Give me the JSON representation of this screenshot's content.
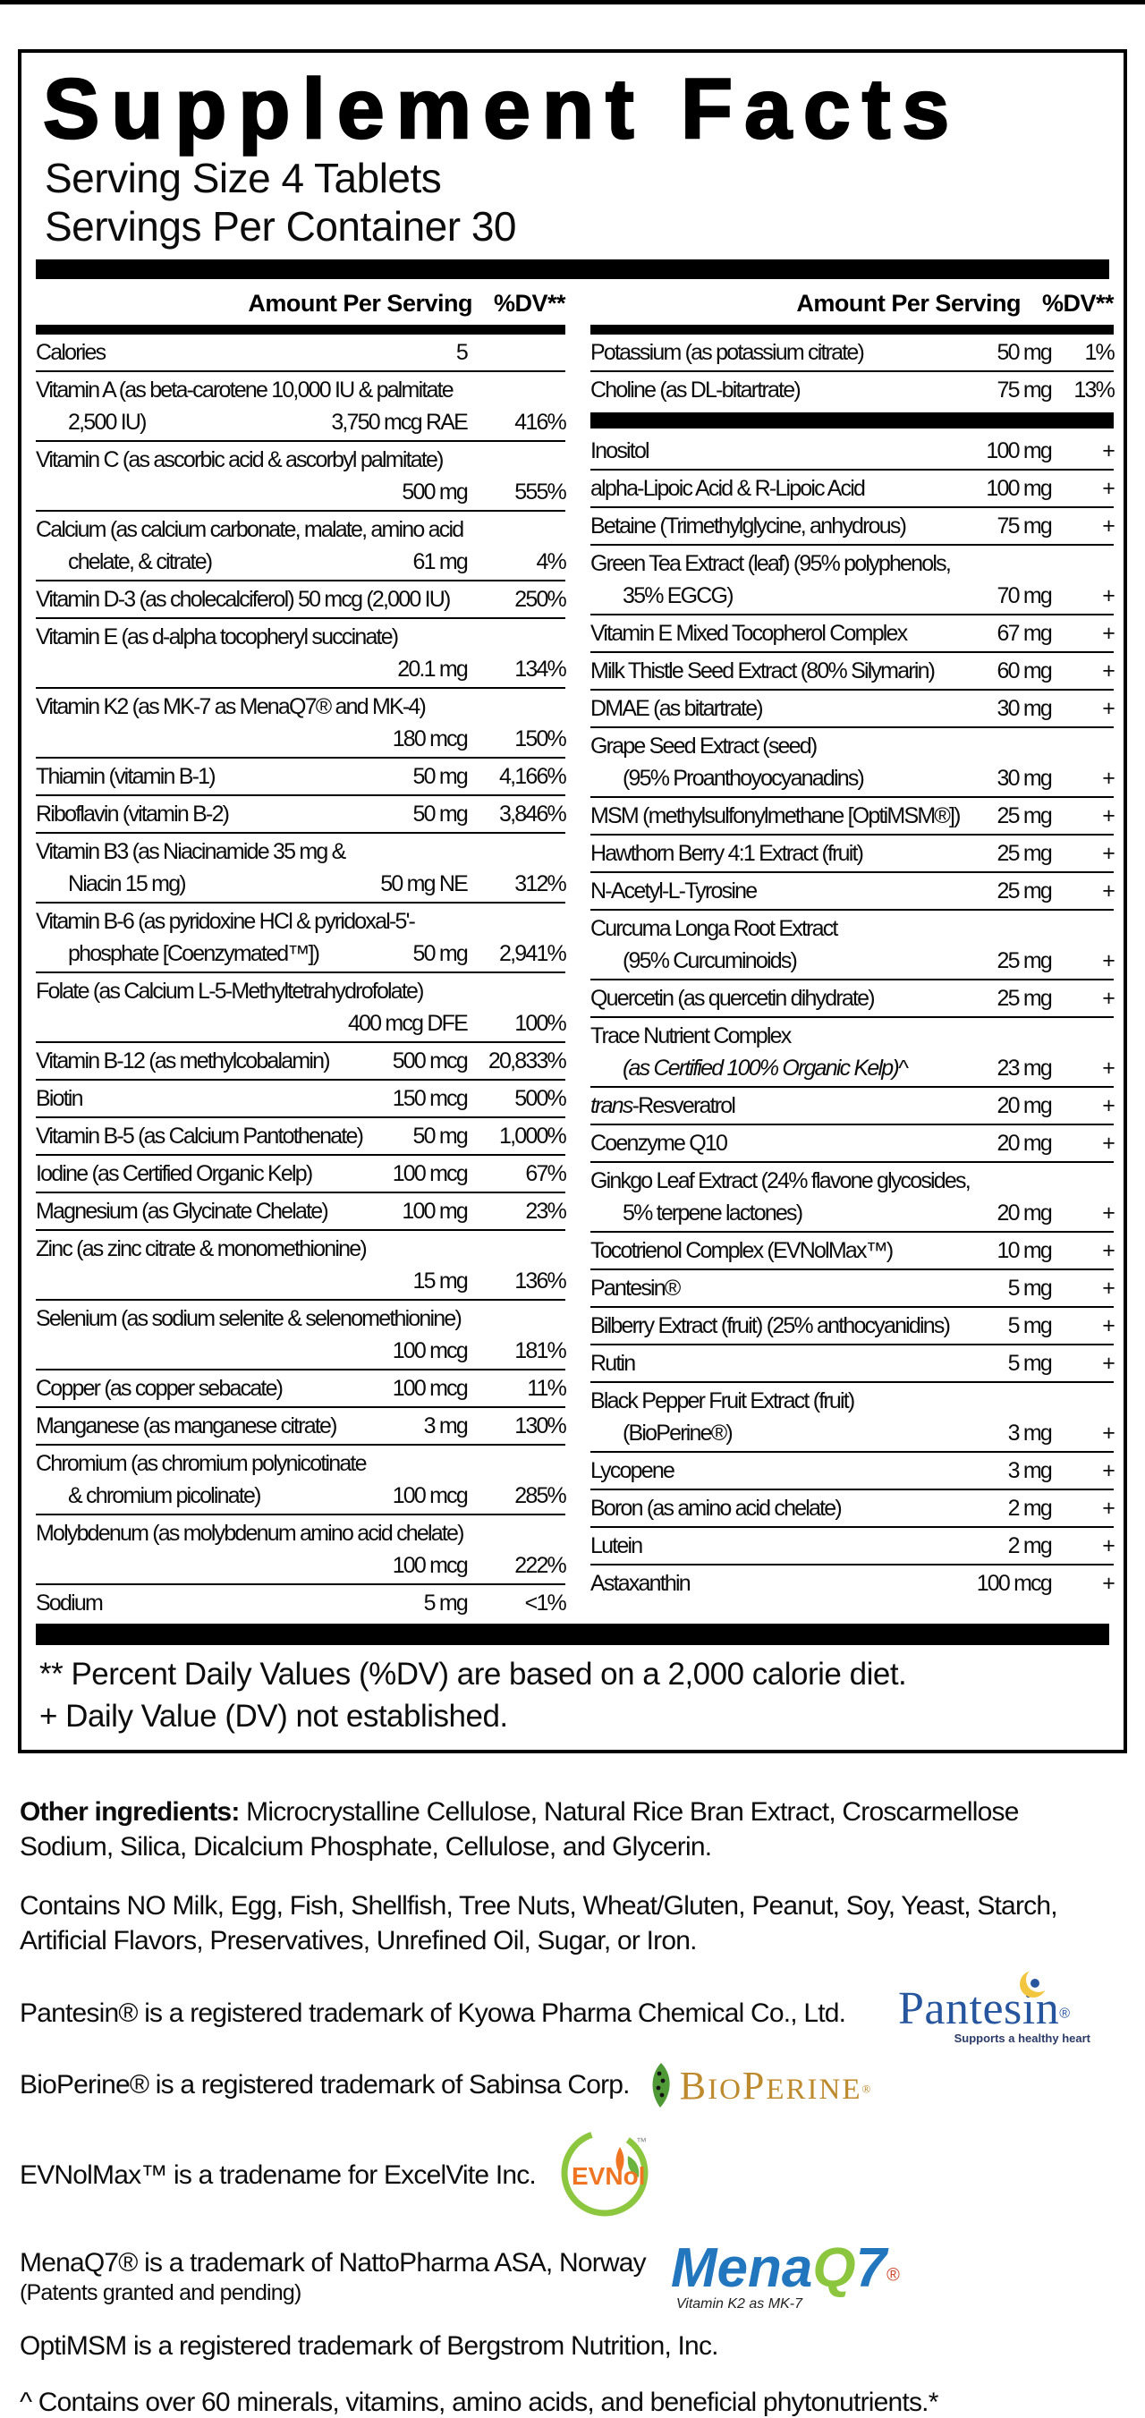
{
  "header": {
    "title": "Supplement Facts",
    "serving_size": "Serving Size 4 Tablets",
    "servings_per_container": "Servings Per Container 30"
  },
  "columns": {
    "header_amount": "Amount Per Serving",
    "header_dv": "%DV**",
    "left_rows": [
      {
        "l": [
          {
            "t": "Calories"
          }
        ],
        "a": "5",
        "d": ""
      },
      {
        "l": [
          {
            "t": "Vitamin A (as beta-carotene 10,000 IU & palmitate"
          },
          {
            "t": "2,500 IU)",
            "ind": true
          }
        ],
        "a": "3,750 mcg RAE",
        "d": "416%"
      },
      {
        "l": [
          {
            "t": "Vitamin C (as ascorbic acid & ascorbyl palmitate)"
          },
          {
            "t": ""
          }
        ],
        "a": "500 mg",
        "d": "555%"
      },
      {
        "l": [
          {
            "t": "Calcium (as calcium carbonate, malate, amino acid"
          },
          {
            "t": "chelate, & citrate)",
            "ind": true
          }
        ],
        "a": "61 mg",
        "d": "4%"
      },
      {
        "l": [
          {
            "t": "Vitamin D-3 (as cholecalciferol) 50 mcg (2,000 IU)"
          }
        ],
        "a": "",
        "d": "250%"
      },
      {
        "l": [
          {
            "t": "Vitamin E (as d-alpha tocopheryl succinate)"
          },
          {
            "t": ""
          }
        ],
        "a": "20.1 mg",
        "d": "134%"
      },
      {
        "l": [
          {
            "t": "Vitamin K2 (as MK-7 as MenaQ7® and MK-4)"
          },
          {
            "t": ""
          }
        ],
        "a": "180 mcg",
        "d": "150%"
      },
      {
        "l": [
          {
            "t": "Thiamin (vitamin B-1)"
          }
        ],
        "a": "50 mg",
        "d": "4,166%"
      },
      {
        "l": [
          {
            "t": "Riboflavin (vitamin B-2)"
          }
        ],
        "a": "50 mg",
        "d": "3,846%"
      },
      {
        "l": [
          {
            "t": "Vitamin B3 (as Niacinamide 35 mg &"
          },
          {
            "t": "Niacin 15 mg)",
            "ind": true
          }
        ],
        "a": "50 mg NE",
        "d": "312%"
      },
      {
        "l": [
          {
            "t": "Vitamin B-6 (as pyridoxine HCl & pyridoxal-5'-"
          },
          {
            "t": "phosphate [Coenzymated™])",
            "ind": true
          }
        ],
        "a": "50 mg",
        "d": "2,941%"
      },
      {
        "l": [
          {
            "t": "Folate (as Calcium L-5-Methyltetrahydrofolate)"
          },
          {
            "t": ""
          }
        ],
        "a": "400 mcg DFE",
        "d": "100%"
      },
      {
        "l": [
          {
            "t": "Vitamin B-12 (as methylcobalamin)"
          }
        ],
        "a": "500 mcg",
        "d": "20,833%"
      },
      {
        "l": [
          {
            "t": "Biotin"
          }
        ],
        "a": "150 mcg",
        "d": "500%"
      },
      {
        "l": [
          {
            "t": "Vitamin B-5 (as Calcium Pantothenate)"
          }
        ],
        "a": "50 mg",
        "d": "1,000%"
      },
      {
        "l": [
          {
            "t": "Iodine (as Certified Organic Kelp)"
          }
        ],
        "a": "100 mcg",
        "d": "67%"
      },
      {
        "l": [
          {
            "t": "Magnesium (as Glycinate Chelate)"
          }
        ],
        "a": "100 mg",
        "d": "23%"
      },
      {
        "l": [
          {
            "t": "Zinc (as zinc citrate & monomethionine)"
          },
          {
            "t": ""
          }
        ],
        "a": "15 mg",
        "d": "136%"
      },
      {
        "l": [
          {
            "t": "Selenium (as sodium selenite & selenomethionine)"
          },
          {
            "t": ""
          }
        ],
        "a": "100 mcg",
        "d": "181%"
      },
      {
        "l": [
          {
            "t": "Copper (as copper sebacate)"
          }
        ],
        "a": "100 mcg",
        "d": "11%"
      },
      {
        "l": [
          {
            "t": "Manganese (as manganese citrate)"
          }
        ],
        "a": "3 mg",
        "d": "130%"
      },
      {
        "l": [
          {
            "t": "Chromium (as chromium polynicotinate"
          },
          {
            "t": "& chromium picolinate)",
            "ind": true
          }
        ],
        "a": "100 mcg",
        "d": "285%"
      },
      {
        "l": [
          {
            "t": "Molybdenum (as molybdenum amino acid chelate)"
          },
          {
            "t": ""
          }
        ],
        "a": "100 mcg",
        "d": "222%"
      },
      {
        "l": [
          {
            "t": "Sodium"
          }
        ],
        "a": "5 mg",
        "d": "<1%"
      }
    ],
    "right_rows_top": [
      {
        "l": [
          {
            "t": "Potassium (as potassium citrate)"
          }
        ],
        "a": "50 mg",
        "d": "1%"
      },
      {
        "l": [
          {
            "t": "Choline (as DL-bitartrate)"
          }
        ],
        "a": "75 mg",
        "d": "13%"
      }
    ],
    "right_rows_bottom": [
      {
        "l": [
          {
            "t": "Inositol"
          }
        ],
        "a": "100 mg",
        "d": "+"
      },
      {
        "l": [
          {
            "t": "alpha-Lipoic Acid & R-Lipoic Acid"
          }
        ],
        "a": "100 mg",
        "d": "+"
      },
      {
        "l": [
          {
            "t": "Betaine (Trimethylglycine, anhydrous)"
          }
        ],
        "a": "75 mg",
        "d": "+"
      },
      {
        "l": [
          {
            "t": "Green Tea Extract (leaf) (95% polyphenols,"
          },
          {
            "t": "35% EGCG)",
            "ind": true
          }
        ],
        "a": "70 mg",
        "d": "+"
      },
      {
        "l": [
          {
            "t": "Vitamin E Mixed Tocopherol Complex"
          }
        ],
        "a": "67 mg",
        "d": "+"
      },
      {
        "l": [
          {
            "t": "Milk Thistle Seed Extract (80% Silymarin)"
          }
        ],
        "a": "60 mg",
        "d": "+"
      },
      {
        "l": [
          {
            "t": "DMAE (as bitartrate)"
          }
        ],
        "a": "30 mg",
        "d": "+"
      },
      {
        "l": [
          {
            "t": "Grape Seed Extract (seed)"
          },
          {
            "t": "(95% Proanthoyocyanadins)",
            "ind": true
          }
        ],
        "a": "30 mg",
        "d": "+"
      },
      {
        "l": [
          {
            "t": "MSM (methylsulfonylmethane [OptiMSM®])"
          }
        ],
        "a": "25 mg",
        "d": "+"
      },
      {
        "l": [
          {
            "t": "Hawthorn Berry 4:1 Extract (fruit)"
          }
        ],
        "a": "25 mg",
        "d": "+"
      },
      {
        "l": [
          {
            "t": "N-Acetyl-L-Tyrosine"
          }
        ],
        "a": "25 mg",
        "d": "+"
      },
      {
        "l": [
          {
            "t": "Curcuma Longa Root Extract"
          },
          {
            "t": "(95% Curcuminoids)",
            "ind": true
          }
        ],
        "a": "25 mg",
        "d": "+"
      },
      {
        "l": [
          {
            "t": "Quercetin (as quercetin dihydrate)"
          }
        ],
        "a": "25 mg",
        "d": "+"
      },
      {
        "l": [
          {
            "t": "Trace Nutrient Complex"
          },
          {
            "t": "(as Certified 100% Organic Kelp)^",
            "ind": true,
            "it": true
          }
        ],
        "a": "23 mg",
        "d": "+"
      },
      {
        "l": [
          {
            "pre": "trans",
            "t": "-Resveratrol"
          }
        ],
        "a": "20 mg",
        "d": "+"
      },
      {
        "l": [
          {
            "t": "Coenzyme Q10"
          }
        ],
        "a": "20 mg",
        "d": "+"
      },
      {
        "l": [
          {
            "t": "Ginkgo Leaf Extract (24% flavone glycosides,"
          },
          {
            "t": "5% terpene lactones)",
            "ind": true
          }
        ],
        "a": "20 mg",
        "d": "+"
      },
      {
        "l": [
          {
            "t": "Tocotrienol Complex (EVNolMax™)"
          }
        ],
        "a": "10 mg",
        "d": "+"
      },
      {
        "l": [
          {
            "t": "Pantesin®"
          }
        ],
        "a": "5 mg",
        "d": "+"
      },
      {
        "l": [
          {
            "t": "Bilberry Extract (fruit) (25% anthocyanidins)"
          }
        ],
        "a": "5 mg",
        "d": "+"
      },
      {
        "l": [
          {
            "t": "Rutin"
          }
        ],
        "a": "5 mg",
        "d": "+"
      },
      {
        "l": [
          {
            "t": "Black Pepper Fruit Extract (fruit)"
          },
          {
            "t": "(BioPerine®)",
            "ind": true
          }
        ],
        "a": "3 mg",
        "d": "+"
      },
      {
        "l": [
          {
            "t": "Lycopene"
          }
        ],
        "a": "3 mg",
        "d": "+"
      },
      {
        "l": [
          {
            "t": "Boron (as amino acid chelate)"
          }
        ],
        "a": "2 mg",
        "d": "+"
      },
      {
        "l": [
          {
            "t": "Lutein"
          }
        ],
        "a": "2 mg",
        "d": "+"
      },
      {
        "l": [
          {
            "t": "Astaxanthin"
          }
        ],
        "a": "100 mcg",
        "d": "+"
      }
    ]
  },
  "footnotes": {
    "dv_note": "** Percent Daily Values (%DV) are based on a 2,000 calorie diet.",
    "plus_note": "+ Daily Value (DV) not established."
  },
  "other_ingredients": {
    "label": "Other ingredients:",
    "text": " Microcrystalline Cellulose, Natural Rice Bran Extract, Croscarmellose Sodium, Silica, Dicalcium Phosphate, Cellulose, and Glycerin."
  },
  "allergen_note": "Contains NO Milk, Egg, Fish, Shellfish, Tree Nuts, Wheat/Gluten, Peanut, Soy, Yeast, Starch, Artificial Flavors, Preservatives, Unrefined Oil, Sugar, or Iron.",
  "trademarks": [
    {
      "text": "Pantesin® is a registered trademark of Kyowa Pharma Chemical Co., Ltd."
    },
    {
      "text": "BioPerine® is a registered trademark of Sabinsa Corp."
    },
    {
      "text": "EVNolMax™ is a tradename for ExcelVite Inc."
    },
    {
      "text": "MenaQ7® is a trademark of NattoPharma ASA, Norway",
      "subtext": "(Patents granted and pending)"
    },
    {
      "text": "OptiMSM is a registered trademark of Bergstrom Nutrition, Inc."
    }
  ],
  "kelp_note": "^ Contains over 60 minerals, vitamins, amino acids, and beneficial phytonutrients.*",
  "logos": {
    "pantesin": {
      "name": "Pantesin",
      "reg": "®",
      "tagline": "Supports a healthy heart",
      "text_color": "#27569e",
      "accent_color": "#f3c63f"
    },
    "bioperine": {
      "b": "B",
      "io": "IO",
      "p": "P",
      "erine": "ERINE",
      "reg": "®",
      "text_color": "#bd8a2e",
      "leaf_color": "#4f9937"
    },
    "evnol": {
      "name": "EVNol",
      "tm": "™",
      "ring_color": "#8dc63f",
      "text_color": "#f07522"
    },
    "menaq7": {
      "mena": "Mena",
      "q": "Q",
      "seven": "7",
      "reg": "®",
      "tagline": "Vitamin K2 as MK-7",
      "blue": "#2176bd",
      "green": "#8cc63e"
    }
  }
}
